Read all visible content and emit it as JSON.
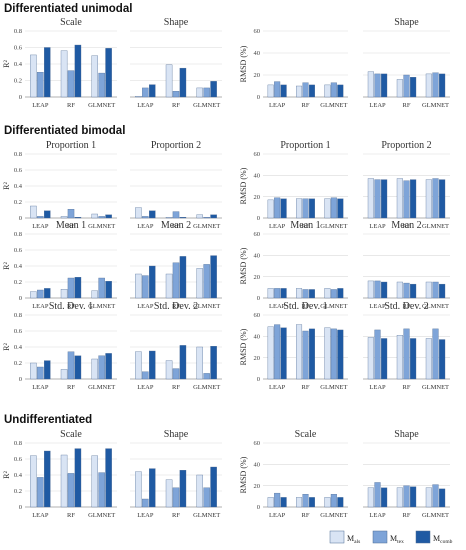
{
  "colors": {
    "mals": "#d9e4f4",
    "mtex": "#7ea4d8",
    "mcomb": "#1f5aa3",
    "edge": "#4d6b94"
  },
  "sections": [
    {
      "title": "Differentiated unimodal"
    },
    {
      "title": "Differentiated bimodal"
    },
    {
      "title": "Undifferentiated"
    }
  ],
  "legend": {
    "items": [
      {
        "base": "M",
        "sub": "als"
      },
      {
        "base": "M",
        "sub": "tex"
      },
      {
        "base": "M",
        "sub": "comb"
      }
    ]
  },
  "chart_data": [
    {
      "type": "bar",
      "section": 0,
      "title": "Scale",
      "ylabel": "R²",
      "ylim": [
        0,
        0.8
      ],
      "yticks": [
        "0",
        "0.2",
        "0.4",
        "0.6",
        "0.8"
      ],
      "categories": [
        "LEAP",
        "RF",
        "GLMNET"
      ],
      "series": [
        {
          "values": [
            0.51,
            0.56,
            0.5
          ]
        },
        {
          "values": [
            0.3,
            0.32,
            0.29
          ]
        },
        {
          "values": [
            0.6,
            0.63,
            0.59
          ]
        }
      ]
    },
    {
      "type": "bar",
      "section": 0,
      "title": "Shape",
      "ylabel": "",
      "ylim": [
        0,
        0.8
      ],
      "yticks": [],
      "categories": [
        "LEAP",
        "RF",
        "GLMNET"
      ],
      "series": [
        {
          "values": [
            0.01,
            0.39,
            0.11
          ]
        },
        {
          "values": [
            0.11,
            0.07,
            0.11
          ]
        },
        {
          "values": [
            0.15,
            0.35,
            0.19
          ]
        }
      ]
    },
    {
      "type": "bar",
      "section": 0,
      "title": "",
      "ylabel": "RMSD (%)",
      "ylim": [
        0,
        60
      ],
      "yticks": [
        "0",
        "20",
        "40",
        "60"
      ],
      "categories": [
        "LEAP",
        "RF",
        "GLMNET"
      ],
      "series": [
        {
          "values": [
            11,
            10,
            11
          ]
        },
        {
          "values": [
            14,
            13,
            13
          ]
        },
        {
          "values": [
            11,
            11,
            11
          ]
        }
      ]
    },
    {
      "type": "bar",
      "section": 0,
      "title": "Shape",
      "ylabel": "",
      "ylim": [
        0,
        60
      ],
      "yticks": [],
      "categories": [
        "LEAP",
        "RF",
        "GLMNET"
      ],
      "series": [
        {
          "values": [
            23,
            16,
            21
          ]
        },
        {
          "values": [
            21,
            20,
            22
          ]
        },
        {
          "values": [
            21,
            18,
            21
          ]
        }
      ]
    },
    {
      "type": "bar",
      "section": 1,
      "title": "Proportion 1",
      "ylabel": "R²",
      "ylim": [
        0,
        0.8
      ],
      "yticks": [
        "0",
        "0.2",
        "0.4",
        "0.6",
        "0.8"
      ],
      "categories": [
        "LEAP",
        "RF",
        "GLMNET"
      ],
      "series": [
        {
          "values": [
            0.15,
            0.02,
            0.05
          ]
        },
        {
          "values": [
            0.02,
            0.11,
            0.02
          ]
        },
        {
          "values": [
            0.09,
            0.01,
            0.04
          ]
        }
      ]
    },
    {
      "type": "bar",
      "section": 1,
      "title": "Proportion 2",
      "ylabel": "",
      "ylim": [
        0,
        0.8
      ],
      "yticks": [],
      "categories": [
        "LEAP",
        "RF",
        "GLMNET"
      ],
      "series": [
        {
          "values": [
            0.13,
            0.01,
            0.04
          ]
        },
        {
          "values": [
            0.02,
            0.08,
            0.01
          ]
        },
        {
          "values": [
            0.09,
            0.01,
            0.04
          ]
        }
      ]
    },
    {
      "type": "bar",
      "section": 1,
      "title": "Proportion 1",
      "ylabel": "RMSD (%)",
      "ylim": [
        0,
        60
      ],
      "yticks": [
        "0",
        "20",
        "40",
        "60"
      ],
      "categories": [
        "LEAP",
        "RF",
        "GLMNET"
      ],
      "series": [
        {
          "values": [
            17,
            18,
            18
          ]
        },
        {
          "values": [
            19,
            18,
            19
          ]
        },
        {
          "values": [
            18,
            18,
            18
          ]
        }
      ]
    },
    {
      "type": "bar",
      "section": 1,
      "title": "Proportion 2",
      "ylabel": "",
      "ylim": [
        0,
        60
      ],
      "yticks": [],
      "categories": [
        "LEAP",
        "RF",
        "GLMNET"
      ],
      "series": [
        {
          "values": [
            37,
            37,
            36
          ]
        },
        {
          "values": [
            36,
            35,
            37
          ]
        },
        {
          "values": [
            36,
            36,
            36
          ]
        }
      ]
    },
    {
      "type": "bar",
      "section": 1,
      "title": "Mean 1",
      "ylabel": "R²",
      "ylim": [
        0,
        0.8
      ],
      "yticks": [
        "0",
        "0.2",
        "0.4",
        "0.6",
        "0.8"
      ],
      "categories": [
        "LEAP",
        "RF",
        "GLMNET"
      ],
      "series": [
        {
          "values": [
            0.08,
            0.11,
            0.09
          ]
        },
        {
          "values": [
            0.1,
            0.25,
            0.25
          ]
        },
        {
          "values": [
            0.12,
            0.26,
            0.21
          ]
        }
      ]
    },
    {
      "type": "bar",
      "section": 1,
      "title": "Mean 2",
      "ylabel": "",
      "ylim": [
        0,
        0.8
      ],
      "yticks": [],
      "categories": [
        "LEAP",
        "RF",
        "GLMNET"
      ],
      "series": [
        {
          "values": [
            0.3,
            0.3,
            0.37
          ]
        },
        {
          "values": [
            0.28,
            0.44,
            0.42
          ]
        },
        {
          "values": [
            0.4,
            0.52,
            0.53
          ]
        }
      ]
    },
    {
      "type": "bar",
      "section": 1,
      "title": "Mean 1",
      "ylabel": "RMSD (%)",
      "ylim": [
        0,
        60
      ],
      "yticks": [
        "0",
        "20",
        "40",
        "60"
      ],
      "categories": [
        "LEAP",
        "RF",
        "GLMNET"
      ],
      "series": [
        {
          "values": [
            9,
            9,
            9
          ]
        },
        {
          "values": [
            9,
            8,
            8
          ]
        },
        {
          "values": [
            9,
            8,
            9
          ]
        }
      ]
    },
    {
      "type": "bar",
      "section": 1,
      "title": "Mean 2",
      "ylabel": "",
      "ylim": [
        0,
        60
      ],
      "yticks": [],
      "categories": [
        "LEAP",
        "RF",
        "GLMNET"
      ],
      "series": [
        {
          "values": [
            16,
            15,
            15
          ]
        },
        {
          "values": [
            16,
            14,
            15
          ]
        },
        {
          "values": [
            15,
            13,
            13
          ]
        }
      ]
    },
    {
      "type": "bar",
      "section": 1,
      "title": "Std. Dev. 1",
      "ylabel": "R²",
      "ylim": [
        0,
        0.8
      ],
      "yticks": [
        "0",
        "0.2",
        "0.4",
        "0.6",
        "0.8"
      ],
      "categories": [
        "LEAP",
        "RF",
        "GLMNET"
      ],
      "series": [
        {
          "values": [
            0.2,
            0.12,
            0.25
          ]
        },
        {
          "values": [
            0.15,
            0.34,
            0.29
          ]
        },
        {
          "values": [
            0.23,
            0.29,
            0.32
          ]
        }
      ]
    },
    {
      "type": "bar",
      "section": 1,
      "title": "Std. Dev. 2",
      "ylabel": "",
      "ylim": [
        0,
        0.8
      ],
      "yticks": [],
      "categories": [
        "LEAP",
        "RF",
        "GLMNET"
      ],
      "series": [
        {
          "values": [
            0.34,
            0.23,
            0.4
          ]
        },
        {
          "values": [
            0.09,
            0.13,
            0.07
          ]
        },
        {
          "values": [
            0.35,
            0.42,
            0.41
          ]
        }
      ]
    },
    {
      "type": "bar",
      "section": 1,
      "title": "Std. Dev. 1",
      "ylabel": "RMSD (%)",
      "ylim": [
        0,
        60
      ],
      "yticks": [
        "0",
        "20",
        "40",
        "60"
      ],
      "categories": [
        "LEAP",
        "RF",
        "GLMNET"
      ],
      "series": [
        {
          "values": [
            49,
            51,
            48
          ]
        },
        {
          "values": [
            51,
            45,
            47
          ]
        },
        {
          "values": [
            48,
            47,
            46
          ]
        }
      ]
    },
    {
      "type": "bar",
      "section": 1,
      "title": "Std. Dev. 2",
      "ylabel": "",
      "ylim": [
        0,
        60
      ],
      "yticks": [],
      "categories": [
        "LEAP",
        "RF",
        "GLMNET"
      ],
      "series": [
        {
          "values": [
            39,
            41,
            38
          ]
        },
        {
          "values": [
            46,
            47,
            47
          ]
        },
        {
          "values": [
            38,
            38,
            37
          ]
        }
      ]
    },
    {
      "type": "bar",
      "section": 2,
      "title": "Scale",
      "ylabel": "R²",
      "ylim": [
        0,
        0.8
      ],
      "yticks": [
        "0",
        "0.2",
        "0.4",
        "0.6",
        "0.8"
      ],
      "categories": [
        "LEAP",
        "RF",
        "GLMNET"
      ],
      "series": [
        {
          "values": [
            0.64,
            0.65,
            0.64
          ]
        },
        {
          "values": [
            0.37,
            0.42,
            0.43
          ]
        },
        {
          "values": [
            0.7,
            0.73,
            0.73
          ]
        }
      ]
    },
    {
      "type": "bar",
      "section": 2,
      "title": "Shape",
      "ylabel": "",
      "ylim": [
        0,
        0.8
      ],
      "yticks": [],
      "categories": [
        "LEAP",
        "RF",
        "GLMNET"
      ],
      "series": [
        {
          "values": [
            0.44,
            0.34,
            0.4
          ]
        },
        {
          "values": [
            0.1,
            0.24,
            0.24
          ]
        },
        {
          "values": [
            0.48,
            0.46,
            0.5
          ]
        }
      ]
    },
    {
      "type": "bar",
      "section": 2,
      "title": "Scale",
      "ylabel": "RMSD (%)",
      "ylim": [
        0,
        60
      ],
      "yticks": [
        "0",
        "20",
        "40",
        "60"
      ],
      "categories": [
        "LEAP",
        "RF",
        "GLMNET"
      ],
      "series": [
        {
          "values": [
            9,
            9,
            9
          ]
        },
        {
          "values": [
            13,
            12,
            12
          ]
        },
        {
          "values": [
            9,
            9,
            9
          ]
        }
      ]
    },
    {
      "type": "bar",
      "section": 2,
      "title": "Shape",
      "ylabel": "",
      "ylim": [
        0,
        60
      ],
      "yticks": [],
      "categories": [
        "LEAP",
        "RF",
        "GLMNET"
      ],
      "series": [
        {
          "values": [
            18,
            18,
            18
          ]
        },
        {
          "values": [
            23,
            20,
            21
          ]
        },
        {
          "values": [
            18,
            19,
            17
          ]
        }
      ]
    }
  ]
}
